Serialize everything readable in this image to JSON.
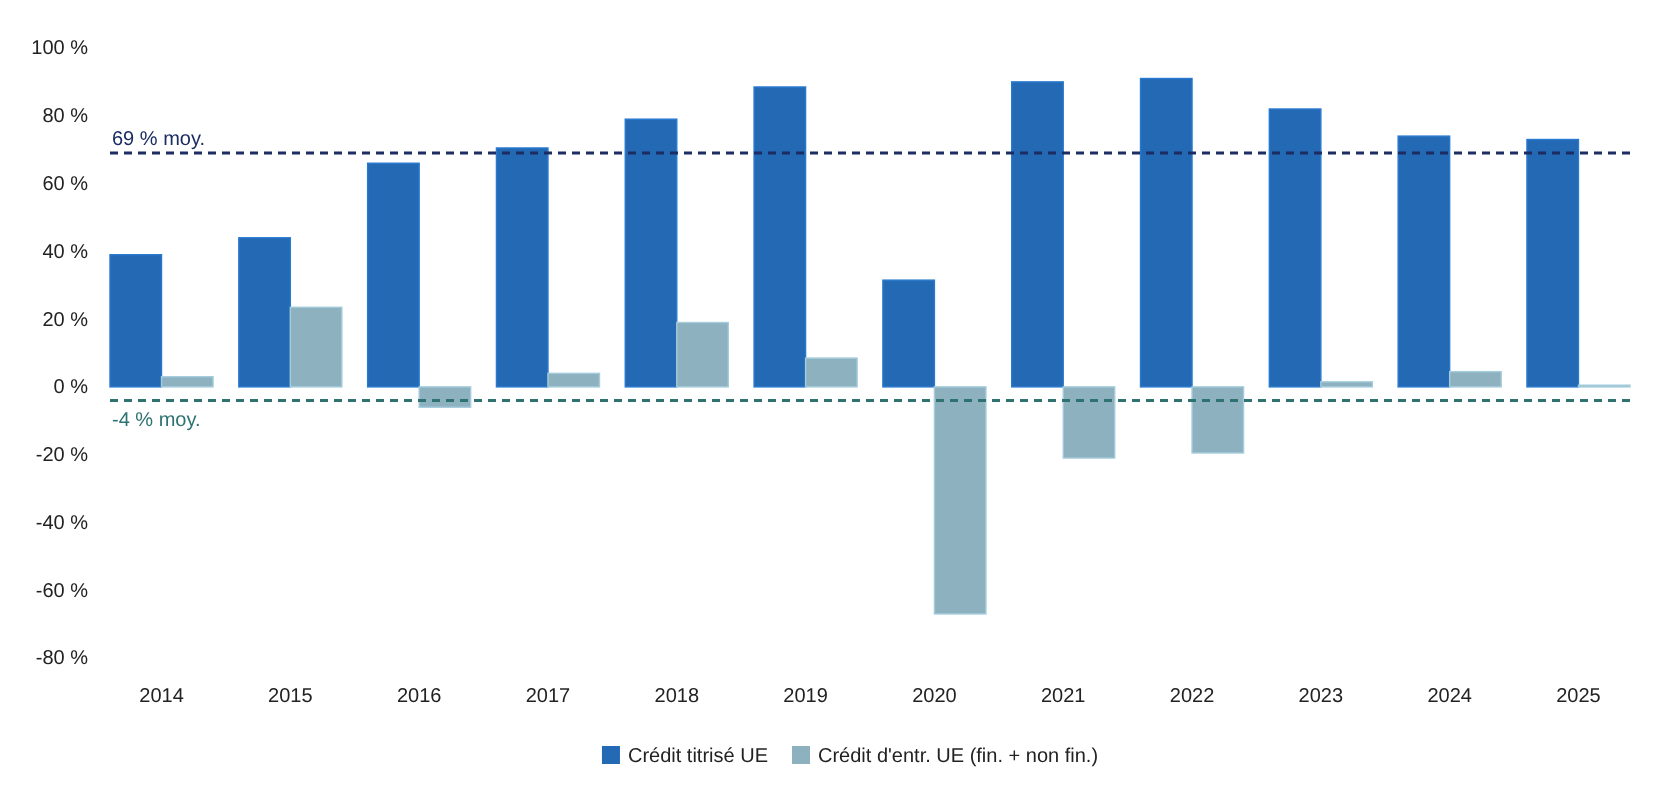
{
  "chart_data": {
    "type": "bar",
    "categories": [
      "2014",
      "2015",
      "2016",
      "2017",
      "2018",
      "2019",
      "2020",
      "2021",
      "2022",
      "2023",
      "2024",
      "2025"
    ],
    "series": [
      {
        "name": "Crédit titrisé UE",
        "color": "#2369b4",
        "values": [
          39,
          44,
          66,
          70.5,
          79,
          88.5,
          31.5,
          90,
          91,
          82,
          74,
          73
        ]
      },
      {
        "name": "Crédit d'entr. UE (fin. + non fin.)",
        "color": "#8eb1bf",
        "values": [
          3,
          23.5,
          -6,
          4,
          19,
          8.5,
          -67,
          -21,
          -19.5,
          1.5,
          4.5,
          0.5
        ]
      }
    ],
    "ylim": [
      -80,
      100
    ],
    "yticks": [
      {
        "value": -80,
        "label": "-80 %"
      },
      {
        "value": -60,
        "label": "-60 %"
      },
      {
        "value": -40,
        "label": "-40 %"
      },
      {
        "value": -20,
        "label": "-20 %"
      },
      {
        "value": 0,
        "label": "0 %"
      },
      {
        "value": 20,
        "label": "20 %"
      },
      {
        "value": 40,
        "label": "40 %"
      },
      {
        "value": 60,
        "label": "60 %"
      },
      {
        "value": 80,
        "label": "80 %"
      },
      {
        "value": 100,
        "label": "100 %"
      }
    ],
    "ref_lines": [
      {
        "axis": "y",
        "value": 69,
        "label": "69 % moy.",
        "color": "#1b2d63",
        "line_style": "dashed"
      },
      {
        "axis": "y",
        "value": -4,
        "label": "-4 % moy.",
        "color": "#2f7272",
        "line_style": "dashed"
      }
    ],
    "grid": false,
    "legend": "bottom"
  }
}
